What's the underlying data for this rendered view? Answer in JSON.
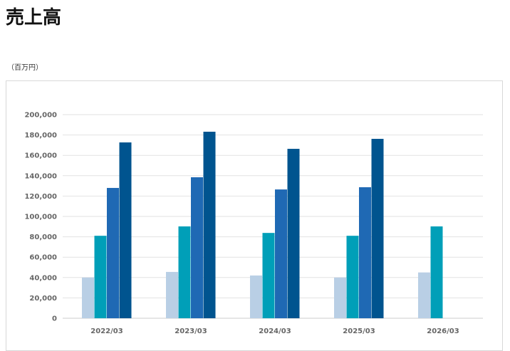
{
  "page": {
    "title": "売上高",
    "unit": "（百万円）"
  },
  "chart_data": {
    "type": "bar",
    "title": "",
    "xlabel": "",
    "ylabel": "",
    "categories": [
      "2022/03",
      "2023/03",
      "2024/03",
      "2025/03",
      "2026/03"
    ],
    "series": [
      {
        "values": [
          40000,
          45500,
          42000,
          40000,
          45000
        ],
        "color": "#b9cfe5"
      },
      {
        "values": [
          81000,
          90200,
          83800,
          81000,
          90200
        ],
        "color": "#009fb8"
      },
      {
        "values": [
          128000,
          138500,
          126500,
          128700,
          null
        ],
        "color": "#1f69b4"
      },
      {
        "values": [
          172700,
          183200,
          166400,
          176200,
          null
        ],
        "color": "#00548f"
      }
    ],
    "ylim": [
      0,
      200000
    ],
    "yticks": [
      "0",
      "20,000",
      "40,000",
      "60,000",
      "80,000",
      "100,000",
      "120,000",
      "140,000",
      "160,000",
      "180,000",
      "200,000"
    ],
    "grid": true,
    "legend": "none"
  }
}
